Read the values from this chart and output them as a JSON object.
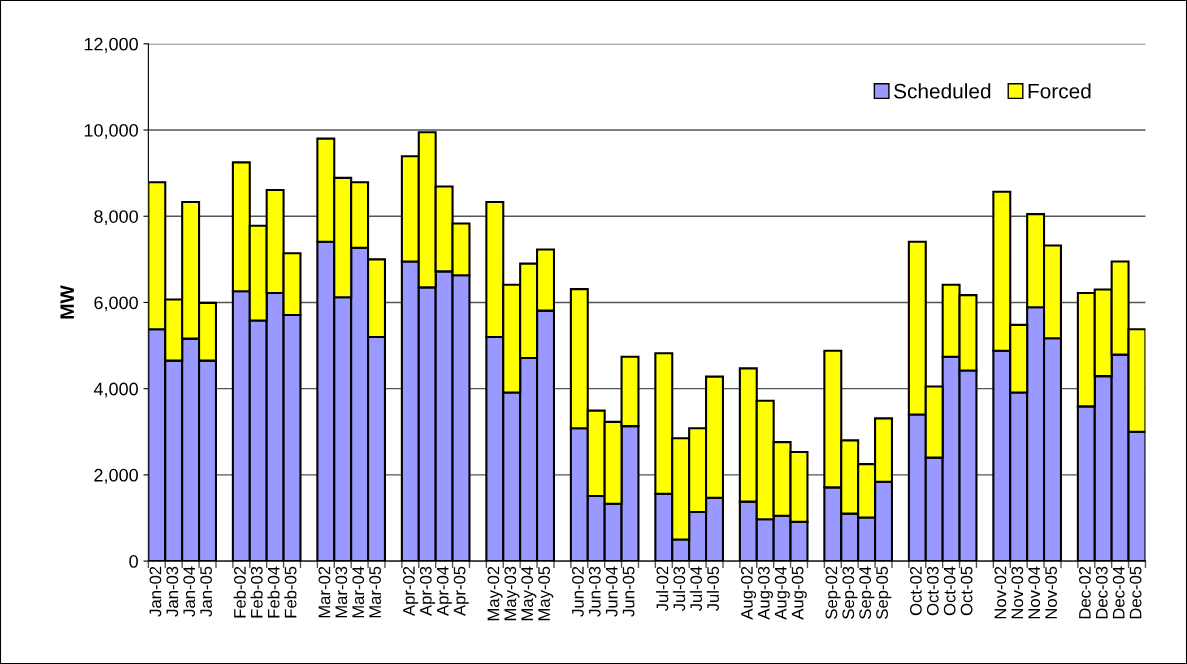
{
  "chart_data": {
    "type": "bar",
    "stacked": true,
    "ylabel": "MW",
    "categories": [
      "Jan-02",
      "Jan-03",
      "Jan-04",
      "Jan-05",
      null,
      "Feb-02",
      "Feb-03",
      "Feb-04",
      "Feb-05",
      null,
      "Mar-02",
      "Mar-03",
      "Mar-04",
      "Mar-05",
      null,
      "Apr-02",
      "Apr-03",
      "Apr-04",
      "Apr-05",
      null,
      "May-02",
      "May-03",
      "May-04",
      "May-05",
      null,
      "Jun-02",
      "Jun-03",
      "Jun-04",
      "Jun-05",
      null,
      "Jul-02",
      "Jul-03",
      "Jul-04",
      "Jul-05",
      null,
      "Aug-02",
      "Aug-03",
      "Aug-04",
      "Aug-05",
      null,
      "Sep-02",
      "Sep-03",
      "Sep-04",
      "Sep-05",
      null,
      "Oct-02",
      "Oct-03",
      "Oct-04",
      "Oct-05",
      null,
      "Nov-02",
      "Nov-03",
      "Nov-04",
      "Nov-05",
      null,
      "Dec-02",
      "Dec-03",
      "Dec-04",
      "Dec-05"
    ],
    "series": [
      {
        "name": "Scheduled",
        "color": "#9999ff",
        "values": [
          5380,
          4650,
          5160,
          4650,
          null,
          6260,
          5580,
          6220,
          5710,
          null,
          7410,
          6120,
          7270,
          5200,
          null,
          6950,
          6350,
          6720,
          6630,
          null,
          5200,
          3910,
          4710,
          5810,
          null,
          3080,
          1510,
          1330,
          3130,
          null,
          1560,
          500,
          1140,
          1470,
          null,
          1380,
          970,
          1050,
          910,
          null,
          1710,
          1100,
          1010,
          1840,
          null,
          3400,
          2400,
          4740,
          4420,
          null,
          4880,
          3910,
          5890,
          5170,
          null,
          3590,
          4290,
          4790,
          3000
        ]
      },
      {
        "name": "Forced",
        "color": "#ffff00",
        "values": [
          3410,
          1420,
          3170,
          1340,
          null,
          2990,
          2200,
          2390,
          1430,
          null,
          2390,
          2770,
          1520,
          1800,
          null,
          2440,
          3600,
          1970,
          1200,
          null,
          3130,
          2500,
          2190,
          1420,
          null,
          3230,
          1980,
          1900,
          1610,
          null,
          3260,
          2350,
          1940,
          2810,
          null,
          3090,
          2750,
          1710,
          1620,
          null,
          3170,
          1700,
          1240,
          1470,
          null,
          4010,
          1650,
          1670,
          1750,
          null,
          3690,
          1570,
          2160,
          2150,
          null,
          2630,
          2010,
          2160,
          2380
        ]
      }
    ],
    "ylim": [
      0,
      12000
    ],
    "yticks": [
      0,
      {
        "value": 2000,
        "label": "2,000"
      },
      {
        "value": 4000,
        "label": "4,000"
      },
      {
        "value": 6000,
        "label": "6,000"
      },
      {
        "value": 8000,
        "label": "8,000"
      },
      {
        "value": 10000,
        "label": "10,000"
      },
      {
        "value": 12000,
        "label": "12,000"
      }
    ],
    "grid": "y",
    "legend": "top right"
  }
}
